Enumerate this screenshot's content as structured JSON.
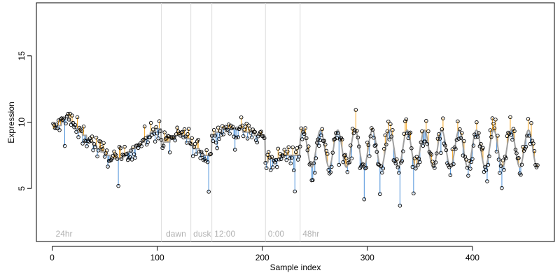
{
  "chart_data": {
    "type": "scatter",
    "title": "",
    "xlabel": "Sample index",
    "ylabel": "Expression",
    "xlim": [
      -15,
      478
    ],
    "ylim": [
      1,
      19
    ],
    "x_ticks": [
      0,
      100,
      200,
      300,
      400
    ],
    "y_ticks": [
      5,
      10,
      15
    ],
    "grid": false,
    "legend": "none",
    "colors": {
      "points": "#000000",
      "above_fit": "#f5a623",
      "below_fit": "#4a90d9",
      "fit_line": "#a0a0a0",
      "annotations": "#b0b0b0",
      "vlines": "#dddddd"
    },
    "vertical_lines": [
      104,
      132,
      152,
      203,
      236
    ],
    "annotations": [
      {
        "x": 2,
        "text": "24hr"
      },
      {
        "x": 107,
        "text": "dawn"
      },
      {
        "x": 133,
        "text": "dusk"
      },
      {
        "x": 153,
        "text": "12:00"
      },
      {
        "x": 204,
        "text": "0:00"
      },
      {
        "x": 237,
        "text": "48hr"
      }
    ],
    "fitted_segments": [
      {
        "from": 0,
        "to": 104,
        "levels": [
          [
            0,
            9.5
          ],
          [
            8,
            9.8
          ],
          [
            14,
            10.5
          ],
          [
            24,
            9.4
          ],
          [
            34,
            8.8
          ],
          [
            44,
            8.0
          ],
          [
            54,
            7.4
          ],
          [
            64,
            7.2
          ],
          [
            74,
            7.8
          ],
          [
            84,
            8.3
          ],
          [
            94,
            9.2
          ],
          [
            104,
            9.6
          ]
        ]
      },
      {
        "from": 104,
        "to": 132,
        "levels": [
          [
            104,
            8.3
          ],
          [
            112,
            8.6
          ],
          [
            122,
            9.1
          ],
          [
            132,
            8.7
          ]
        ]
      },
      {
        "from": 132,
        "to": 152,
        "levels": [
          [
            132,
            8.2
          ],
          [
            140,
            7.9
          ],
          [
            146,
            7.4
          ],
          [
            152,
            7.6
          ]
        ]
      },
      {
        "from": 152,
        "to": 203,
        "levels": [
          [
            152,
            9.0
          ],
          [
            162,
            9.4
          ],
          [
            175,
            9.5
          ],
          [
            190,
            9.2
          ],
          [
            203,
            8.8
          ]
        ]
      },
      {
        "from": 203,
        "to": 236,
        "levels": [
          [
            203,
            7.0
          ],
          [
            210,
            7.3
          ],
          [
            220,
            7.4
          ],
          [
            236,
            7.6
          ]
        ]
      }
    ],
    "oscillation": {
      "start": 236,
      "end": 462,
      "mean": 8.0,
      "amplitude": 1.4,
      "period": 16.5,
      "phase": 0.5
    },
    "n_points": 462,
    "value_range": [
      3.7,
      11.0
    ]
  }
}
